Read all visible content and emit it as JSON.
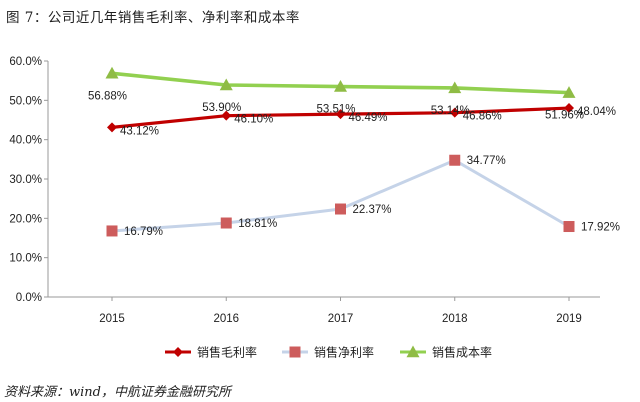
{
  "figure_title": "图 7：公司近几年销售毛利率、净利率和成本率",
  "source_note": "资料来源：wind，中航证券金融研究所",
  "chart_data": {
    "type": "line",
    "categories": [
      "2015",
      "2016",
      "2017",
      "2018",
      "2019"
    ],
    "ylim": [
      0,
      60
    ],
    "y_ticks": [
      "0.0%",
      "10.0%",
      "20.0%",
      "30.0%",
      "40.0%",
      "50.0%",
      "60.0%"
    ],
    "grid": false,
    "legend_position": "bottom",
    "series": [
      {
        "name": "销售毛利率",
        "values": [
          43.12,
          46.1,
          46.49,
          46.86,
          48.04
        ],
        "labels": [
          "43.12%",
          "46.10%",
          "46.49%",
          "46.86%",
          "48.04%"
        ],
        "color": "#c00000",
        "marker": "diamond"
      },
      {
        "name": "销售净利率",
        "values": [
          16.79,
          18.81,
          22.37,
          34.77,
          17.92
        ],
        "labels": [
          "16.79%",
          "18.81%",
          "22.37%",
          "34.77%",
          "17.92%"
        ],
        "color": "#c5d3e8",
        "marker_color": "#cd5c5c",
        "marker": "square"
      },
      {
        "name": "销售成本率",
        "values": [
          56.88,
          53.9,
          53.51,
          53.14,
          51.96
        ],
        "labels": [
          "56.88%",
          "53.90%",
          "53.51%",
          "53.14%",
          "51.96%"
        ],
        "color": "#92d050",
        "marker_color": "#8fbc45",
        "marker": "triangle"
      }
    ]
  }
}
